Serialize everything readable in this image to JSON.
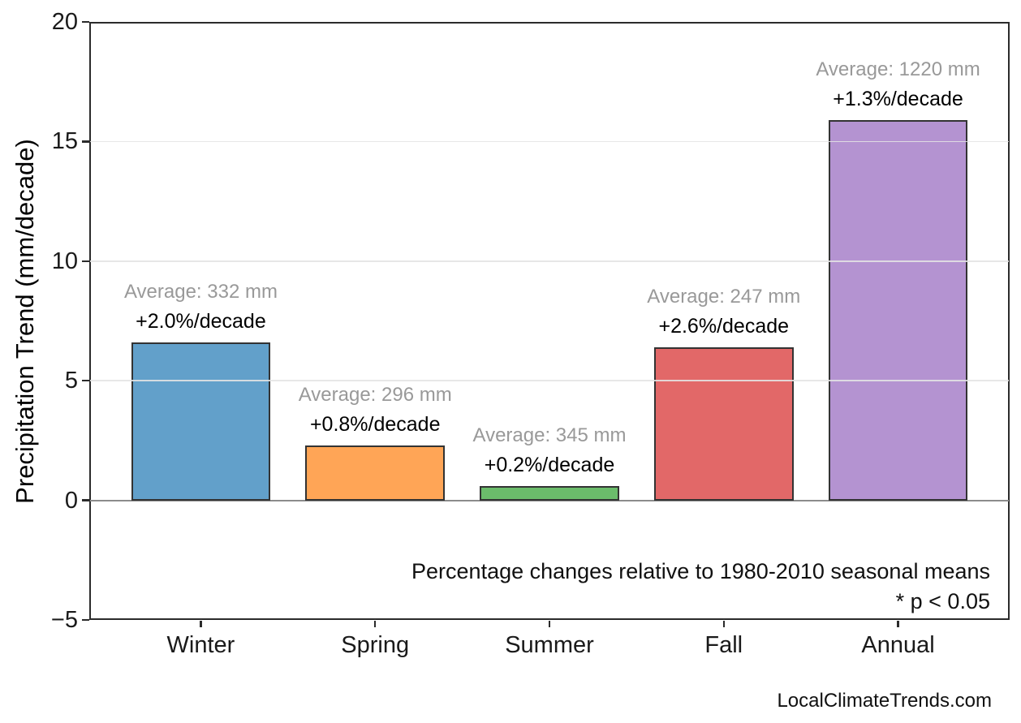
{
  "watermark": "LocalClimateTrends.com",
  "chart_data": {
    "type": "bar",
    "title": "",
    "xlabel": "",
    "ylabel": "Precipitation Trend (mm/decade)",
    "ylim": [
      -5,
      20
    ],
    "yticks": [
      -5,
      0,
      5,
      10,
      15,
      20
    ],
    "ytick_labels": [
      "−5",
      "0",
      "5",
      "10",
      "15",
      "20"
    ],
    "grid": "light horizontal gridlines at yticks; solid gray line at y=0",
    "legend": "none",
    "categories": [
      "Winter",
      "Spring",
      "Summer",
      "Fall",
      "Annual"
    ],
    "values": [
      6.6,
      2.3,
      0.6,
      6.4,
      15.9
    ],
    "average_mm": [
      332,
      296,
      345,
      247,
      1220
    ],
    "percent_change_per_decade": [
      2.0,
      0.8,
      0.2,
      2.6,
      1.3
    ],
    "annotations": [
      {
        "average_label": "Average: 332 mm",
        "trend_label": "+2.0%/decade"
      },
      {
        "average_label": "Average: 296 mm",
        "trend_label": "+0.8%/decade"
      },
      {
        "average_label": "Average: 345 mm",
        "trend_label": "+0.2%/decade"
      },
      {
        "average_label": "Average: 247 mm",
        "trend_label": "+2.6%/decade"
      },
      {
        "average_label": "Average: 1220 mm",
        "trend_label": "+1.3%/decade"
      }
    ],
    "notes": [
      "Percentage changes relative to 1980-2010 seasonal means",
      "* p < 0.05"
    ],
    "bar_colors": [
      "#62A0CA",
      "#FFA556",
      "#6BBC6B",
      "#E26868",
      "#B493D1"
    ],
    "bar_edge_color": "#333333",
    "annotation_colors": {
      "average": "#999999",
      "trend": "#000000"
    },
    "zero_line_color": "#8c8c8c",
    "gridline_color": "#e4e4e4",
    "spine_color": "#2b2b2b"
  }
}
